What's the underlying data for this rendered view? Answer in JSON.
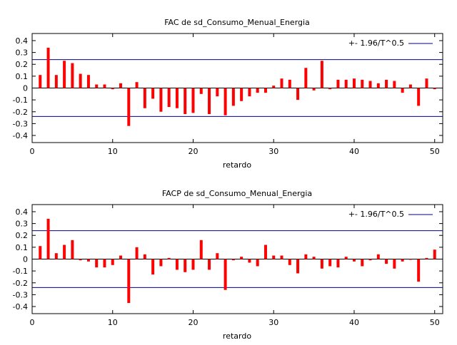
{
  "chart_data": [
    {
      "type": "bar",
      "title": "FAC de sd_Consumo_Menual_Energia",
      "xlabel": "retardo",
      "ylabel": "",
      "xlim": [
        0,
        51
      ],
      "ylim": [
        -0.46,
        0.46
      ],
      "xticks": [
        0,
        10,
        20,
        30,
        40,
        50
      ],
      "yticks": [
        0.4,
        0.3,
        0.2,
        0.1,
        0,
        -0.1,
        -0.2,
        -0.3,
        -0.4
      ],
      "ytick_labels": [
        "0.4",
        "0.3",
        "0.2",
        "0.1",
        "0",
        "-0.1",
        "-0.2",
        "-0.3",
        "-0.4"
      ],
      "bar_color": "#ff0000",
      "band_color": "#00008b",
      "band": 0.24,
      "legend": {
        "label": "+- 1.96/T^0.5",
        "position": "top-right"
      },
      "lags": [
        1,
        2,
        3,
        4,
        5,
        6,
        7,
        8,
        9,
        10,
        11,
        12,
        13,
        14,
        15,
        16,
        17,
        18,
        19,
        20,
        21,
        22,
        23,
        24,
        25,
        26,
        27,
        28,
        29,
        30,
        31,
        32,
        33,
        34,
        35,
        36,
        37,
        38,
        39,
        40,
        41,
        42,
        43,
        44,
        45,
        46,
        47,
        48,
        49,
        50
      ],
      "values": [
        0.11,
        0.34,
        0.11,
        0.23,
        0.21,
        0.12,
        0.11,
        0.03,
        0.03,
        -0.01,
        0.04,
        -0.32,
        0.05,
        -0.17,
        -0.09,
        -0.2,
        -0.16,
        -0.17,
        -0.22,
        -0.21,
        -0.05,
        -0.22,
        -0.07,
        -0.23,
        -0.15,
        -0.11,
        -0.07,
        -0.04,
        -0.04,
        0.02,
        0.08,
        0.07,
        -0.1,
        0.17,
        -0.02,
        0.23,
        -0.01,
        0.07,
        0.07,
        0.08,
        0.07,
        0.06,
        0.04,
        0.07,
        0.06,
        -0.04,
        0.03,
        -0.15,
        0.08,
        -0.01
      ]
    },
    {
      "type": "bar",
      "title": "FACP de sd_Consumo_Menual_Energia",
      "xlabel": "retardo",
      "ylabel": "",
      "xlim": [
        0,
        51
      ],
      "ylim": [
        -0.46,
        0.46
      ],
      "xticks": [
        0,
        10,
        20,
        30,
        40,
        50
      ],
      "yticks": [
        0.4,
        0.3,
        0.2,
        0.1,
        0,
        -0.1,
        -0.2,
        -0.3,
        -0.4
      ],
      "ytick_labels": [
        "0.4",
        "0.3",
        "0.2",
        "0.1",
        "0",
        "-0.1",
        "-0.2",
        "-0.3",
        "-0.4"
      ],
      "bar_color": "#ff0000",
      "band_color": "#00008b",
      "band": 0.24,
      "legend": {
        "label": "+- 1.96/T^0.5",
        "position": "top-right"
      },
      "lags": [
        1,
        2,
        3,
        4,
        5,
        6,
        7,
        8,
        9,
        10,
        11,
        12,
        13,
        14,
        15,
        16,
        17,
        18,
        19,
        20,
        21,
        22,
        23,
        24,
        25,
        26,
        27,
        28,
        29,
        30,
        31,
        32,
        33,
        34,
        35,
        36,
        37,
        38,
        39,
        40,
        41,
        42,
        43,
        44,
        45,
        46,
        47,
        48,
        49,
        50
      ],
      "values": [
        0.11,
        0.34,
        0.05,
        0.12,
        0.16,
        -0.01,
        -0.02,
        -0.07,
        -0.07,
        -0.05,
        0.03,
        -0.37,
        0.1,
        0.04,
        -0.13,
        -0.06,
        0.01,
        -0.09,
        -0.11,
        -0.09,
        0.16,
        -0.09,
        0.05,
        -0.26,
        -0.01,
        0.02,
        -0.03,
        -0.06,
        0.12,
        0.03,
        0.03,
        -0.05,
        -0.12,
        0.04,
        0.02,
        -0.08,
        -0.06,
        -0.07,
        0.02,
        -0.02,
        -0.06,
        -0.01,
        0.04,
        -0.04,
        -0.08,
        -0.02,
        0.0,
        -0.19,
        0.01,
        0.08
      ]
    }
  ]
}
